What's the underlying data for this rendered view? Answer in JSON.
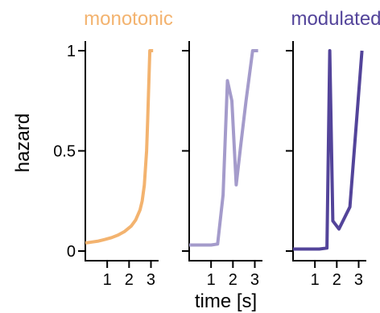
{
  "chart_data": [
    {
      "type": "line",
      "title": "monotonic",
      "color": "#F3B36F",
      "xlabel": "",
      "ylabel": "hazard",
      "xlim": [
        0,
        3.35
      ],
      "ylim": [
        0,
        1
      ],
      "xticks": [
        1,
        2,
        3
      ],
      "yticks": [
        0,
        0.5,
        1
      ],
      "ytick_labels": [
        "0",
        "0.5",
        "1"
      ],
      "x": [
        0,
        0.3,
        0.6,
        0.9,
        1.2,
        1.5,
        1.8,
        2.1,
        2.3,
        2.5,
        2.6,
        2.7,
        2.8,
        2.85,
        2.95,
        3.1
      ],
      "y": [
        0.04,
        0.045,
        0.05,
        0.058,
        0.067,
        0.08,
        0.098,
        0.125,
        0.155,
        0.205,
        0.25,
        0.33,
        0.5,
        0.65,
        1.0,
        1.0
      ]
    },
    {
      "type": "line",
      "title": "",
      "color": "#A49BCB",
      "xlabel": "time [s]",
      "ylabel": "",
      "xlim": [
        0,
        3.35
      ],
      "ylim": [
        0,
        1
      ],
      "xticks": [
        1,
        2,
        3
      ],
      "yticks": [
        0,
        0.5,
        1
      ],
      "ytick_labels": [
        "",
        "",
        ""
      ],
      "x": [
        0,
        0.5,
        1.0,
        1.3,
        1.55,
        1.75,
        1.95,
        2.15,
        2.35,
        2.6,
        2.9,
        3.15
      ],
      "y": [
        0.03,
        0.03,
        0.03,
        0.035,
        0.28,
        0.85,
        0.75,
        0.33,
        0.52,
        0.75,
        1.0,
        1.0
      ]
    },
    {
      "type": "line",
      "title": "modulated",
      "color": "#53449A",
      "xlabel": "",
      "ylabel": "",
      "xlim": [
        0,
        3.35
      ],
      "ylim": [
        0,
        1
      ],
      "xticks": [
        1,
        2,
        3
      ],
      "yticks": [
        0,
        0.5,
        1
      ],
      "ytick_labels": [
        "",
        "",
        ""
      ],
      "x": [
        0,
        0.6,
        1.2,
        1.55,
        1.68,
        1.82,
        2.1,
        2.6,
        3.15
      ],
      "y": [
        0.01,
        0.01,
        0.01,
        0.015,
        1.0,
        0.15,
        0.11,
        0.22,
        1.0
      ]
    }
  ]
}
